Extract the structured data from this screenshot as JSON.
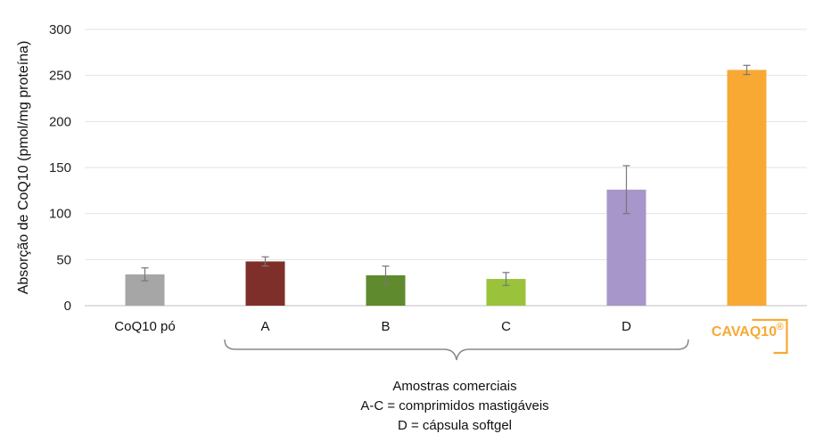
{
  "chart_data": {
    "type": "bar",
    "ylabel": "Absorção de CoQ10 (pmol/mg proteína)",
    "ylim": [
      0,
      300
    ],
    "yticks": [
      0,
      50,
      100,
      150,
      200,
      250,
      300
    ],
    "grid": true,
    "categories": [
      "CoQ10 pó",
      "A",
      "B",
      "C",
      "D",
      "CAVAQ10®"
    ],
    "values": [
      34,
      48,
      33,
      29,
      126,
      256
    ],
    "errors": [
      7,
      5,
      10,
      7,
      26,
      5
    ],
    "colors": [
      "#a6a6a6",
      "#7f2f2a",
      "#5f8a2e",
      "#9ac33b",
      "#a796c9",
      "#f7a934"
    ],
    "brand": {
      "text": "CAVAQ10",
      "mark": "®",
      "color": "#f7a934"
    },
    "annotation": {
      "line1": "Amostras comerciais",
      "line2": "A-C = comprimidos mastigáveis",
      "line3": "D = cápsula softgel"
    }
  }
}
